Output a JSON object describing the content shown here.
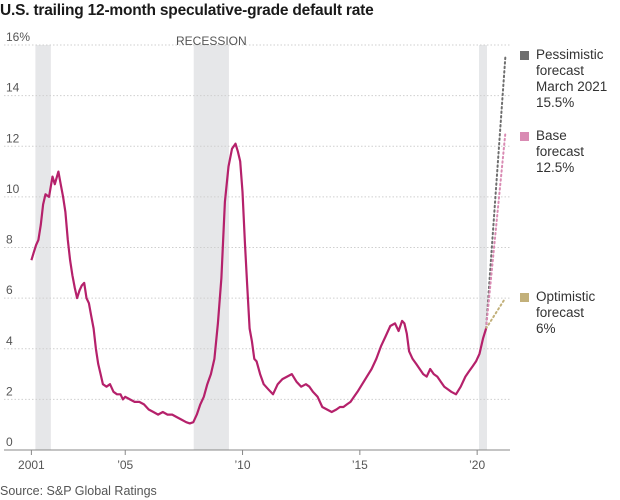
{
  "chart_data": {
    "type": "line",
    "title": "U.S. trailing 12-month speculative-grade default rate",
    "source": "Source: S&P Global Ratings",
    "ylim": [
      0,
      16
    ],
    "y_ticks": [
      "16%",
      "14",
      "12",
      "10",
      "8",
      "6",
      "4",
      "2",
      "0"
    ],
    "y_tick_values": [
      16,
      14,
      12,
      10,
      8,
      6,
      4,
      2,
      0
    ],
    "x_ticks": [
      "2001",
      "’05",
      "’10",
      "’15",
      "’20"
    ],
    "x_tick_values": [
      2001,
      2005,
      2010,
      2015,
      2020
    ],
    "xlim": [
      2000.6,
      2021.4
    ],
    "grid": true,
    "recession_label": "RECESSION",
    "recessions": [
      [
        2001.17,
        2001.83
      ],
      [
        2007.92,
        2009.42
      ],
      [
        2020.08,
        2020.42
      ]
    ],
    "series": [
      {
        "color": "#b5216b",
        "x": [
          2001.0,
          2001.1,
          2001.2,
          2001.3,
          2001.4,
          2001.5,
          2001.6,
          2001.75,
          2001.9,
          2002.0,
          2002.15,
          2002.25,
          2002.35,
          2002.45,
          2002.55,
          2002.65,
          2002.75,
          2002.85,
          2002.95,
          2003.05,
          2003.15,
          2003.25,
          2003.35,
          2003.45,
          2003.55,
          2003.65,
          2003.75,
          2003.85,
          2003.95,
          2004.05,
          2004.2,
          2004.35,
          2004.5,
          2004.65,
          2004.8,
          2004.9,
          2005.0,
          2005.2,
          2005.4,
          2005.6,
          2005.8,
          2006.0,
          2006.2,
          2006.4,
          2006.6,
          2006.8,
          2007.0,
          2007.2,
          2007.4,
          2007.6,
          2007.75,
          2007.9,
          2008.05,
          2008.2,
          2008.35,
          2008.5,
          2008.65,
          2008.8,
          2008.95,
          2009.1,
          2009.25,
          2009.4,
          2009.55,
          2009.7,
          2009.8,
          2009.9,
          2010.0,
          2010.1,
          2010.2,
          2010.3,
          2010.4,
          2010.5,
          2010.6,
          2010.75,
          2010.9,
          2011.1,
          2011.3,
          2011.5,
          2011.7,
          2011.9,
          2012.1,
          2012.3,
          2012.5,
          2012.7,
          2012.85,
          2013.0,
          2013.2,
          2013.4,
          2013.6,
          2013.8,
          2014.0,
          2014.15,
          2014.3,
          2014.45,
          2014.6,
          2014.75,
          2014.9,
          2015.1,
          2015.3,
          2015.5,
          2015.7,
          2015.9,
          2016.1,
          2016.3,
          2016.5,
          2016.65,
          2016.8,
          2016.9,
          2017.0,
          2017.1,
          2017.25,
          2017.4,
          2017.55,
          2017.7,
          2017.85,
          2018.0,
          2018.15,
          2018.3,
          2018.45,
          2018.6,
          2018.75,
          2018.9,
          2019.1,
          2019.3,
          2019.5,
          2019.65,
          2019.8,
          2019.95,
          2020.1,
          2020.25,
          2020.38
        ],
        "values": [
          7.5,
          7.8,
          8.1,
          8.3,
          8.9,
          9.7,
          10.1,
          10.0,
          10.8,
          10.5,
          11.0,
          10.5,
          10.0,
          9.4,
          8.3,
          7.5,
          6.9,
          6.4,
          6.0,
          6.3,
          6.5,
          6.6,
          6.0,
          5.8,
          5.3,
          4.8,
          4.0,
          3.4,
          3.0,
          2.6,
          2.5,
          2.6,
          2.3,
          2.2,
          2.2,
          2.0,
          2.1,
          2.0,
          1.9,
          1.9,
          1.8,
          1.6,
          1.5,
          1.4,
          1.5,
          1.4,
          1.4,
          1.3,
          1.2,
          1.1,
          1.05,
          1.1,
          1.4,
          1.8,
          2.1,
          2.6,
          3.0,
          3.6,
          5.0,
          6.8,
          9.8,
          11.2,
          11.9,
          12.1,
          11.8,
          11.4,
          10.2,
          8.2,
          6.5,
          4.8,
          4.3,
          3.6,
          3.5,
          3.0,
          2.6,
          2.4,
          2.2,
          2.6,
          2.8,
          2.9,
          3.0,
          2.7,
          2.5,
          2.6,
          2.5,
          2.3,
          2.1,
          1.7,
          1.6,
          1.5,
          1.6,
          1.7,
          1.7,
          1.8,
          1.9,
          2.1,
          2.3,
          2.6,
          2.9,
          3.2,
          3.6,
          4.1,
          4.5,
          4.9,
          5.0,
          4.7,
          5.1,
          5.0,
          4.6,
          3.9,
          3.6,
          3.4,
          3.2,
          3.0,
          2.9,
          3.2,
          3.0,
          2.9,
          2.7,
          2.5,
          2.4,
          2.3,
          2.2,
          2.5,
          2.9,
          3.1,
          3.3,
          3.5,
          3.8,
          4.4,
          4.8
        ]
      }
    ],
    "forecasts": [
      {
        "label_lines": [
          "Pessimistic",
          "forecast",
          "March 2021",
          "15.5%"
        ],
        "color": "#6e6e6e",
        "end_value": 15.5,
        "end_x": 2021.2
      },
      {
        "label_lines": [
          "Base",
          "forecast",
          "12.5%"
        ],
        "color": "#d98bb3",
        "end_value": 12.5,
        "end_x": 2021.2
      },
      {
        "label_lines": [
          "Optimistic",
          "forecast",
          "6%"
        ],
        "color": "#c2b07a",
        "end_value": 6,
        "end_x": 2021.2
      }
    ]
  }
}
